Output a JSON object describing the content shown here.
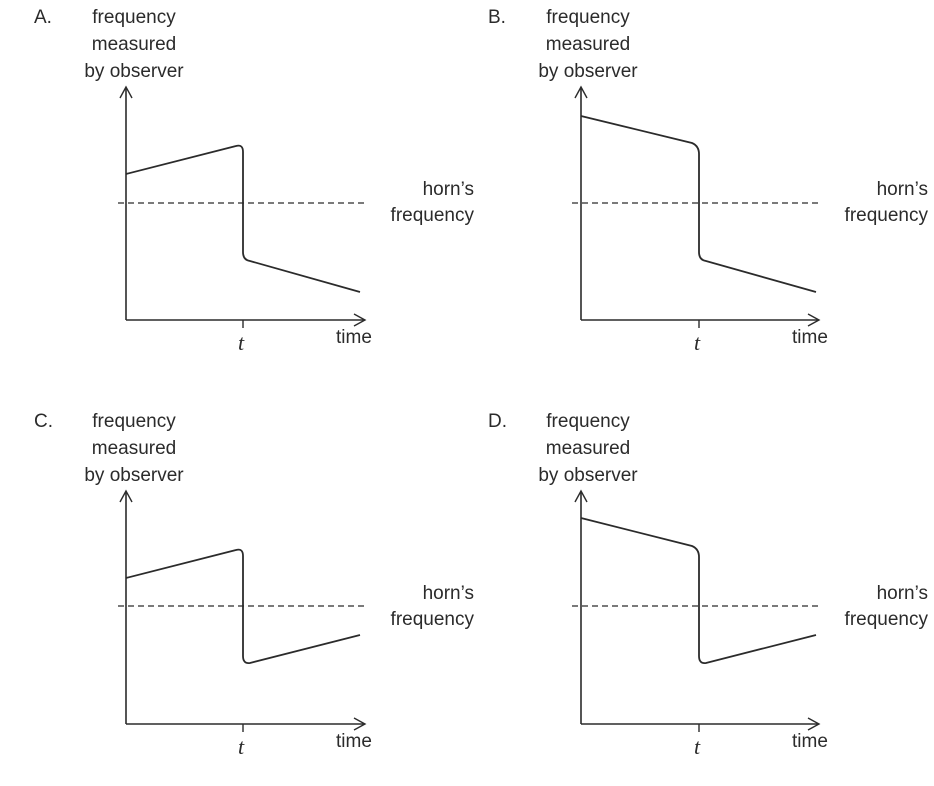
{
  "colors": {
    "ink": "#2b2b2b",
    "background": "#ffffff"
  },
  "panels": [
    {
      "option": "A.",
      "ylabel_lines": [
        "frequency",
        "measured",
        "by observer"
      ],
      "reference_label_lines": [
        "horn’s",
        "frequency"
      ],
      "tick_label": "t",
      "xlabel": "time",
      "before_t": "rises toward t, above horn's frequency",
      "after_t": "falls after t, below horn's frequency",
      "curve": [
        [
          0,
          0.2
        ],
        [
          0.75,
          0.4
        ],
        [
          1.0,
          0.42
        ],
        [
          1.0,
          -0.4
        ],
        [
          1.25,
          -0.41
        ],
        [
          2.0,
          -0.61
        ]
      ]
    },
    {
      "option": "B.",
      "ylabel_lines": [
        "frequency",
        "measured",
        "by observer"
      ],
      "reference_label_lines": [
        "horn’s",
        "frequency"
      ],
      "tick_label": "t",
      "xlabel": "time",
      "before_t": "falls toward t, above horn's frequency",
      "after_t": "falls after t, below horn's frequency",
      "curve": [
        [
          0,
          0.6
        ],
        [
          0.75,
          0.42
        ],
        [
          1.0,
          0.36
        ],
        [
          1.0,
          -0.38
        ],
        [
          1.25,
          -0.41
        ],
        [
          2.0,
          -0.61
        ]
      ]
    },
    {
      "option": "C.",
      "ylabel_lines": [
        "frequency",
        "measured",
        "by observer"
      ],
      "reference_label_lines": [
        "horn’s",
        "frequency"
      ],
      "tick_label": "t",
      "xlabel": "time",
      "before_t": "rises toward t, above horn's frequency",
      "after_t": "rises after t, below horn's frequency",
      "curve": [
        [
          0,
          0.2
        ],
        [
          0.75,
          0.39
        ],
        [
          1.0,
          0.41
        ],
        [
          1.0,
          -0.38
        ],
        [
          1.25,
          -0.4
        ],
        [
          2.0,
          -0.2
        ]
      ]
    },
    {
      "option": "D.",
      "ylabel_lines": [
        "frequency",
        "measured",
        "by observer"
      ],
      "reference_label_lines": [
        "horn’s",
        "frequency"
      ],
      "tick_label": "t",
      "xlabel": "time",
      "before_t": "falls toward t, above horn's frequency",
      "after_t": "rises after t, below horn's frequency",
      "curve": [
        [
          0,
          0.6
        ],
        [
          0.75,
          0.44
        ],
        [
          1.0,
          0.38
        ],
        [
          1.0,
          -0.38
        ],
        [
          1.25,
          -0.4
        ],
        [
          2.0,
          -0.2
        ]
      ]
    }
  ]
}
